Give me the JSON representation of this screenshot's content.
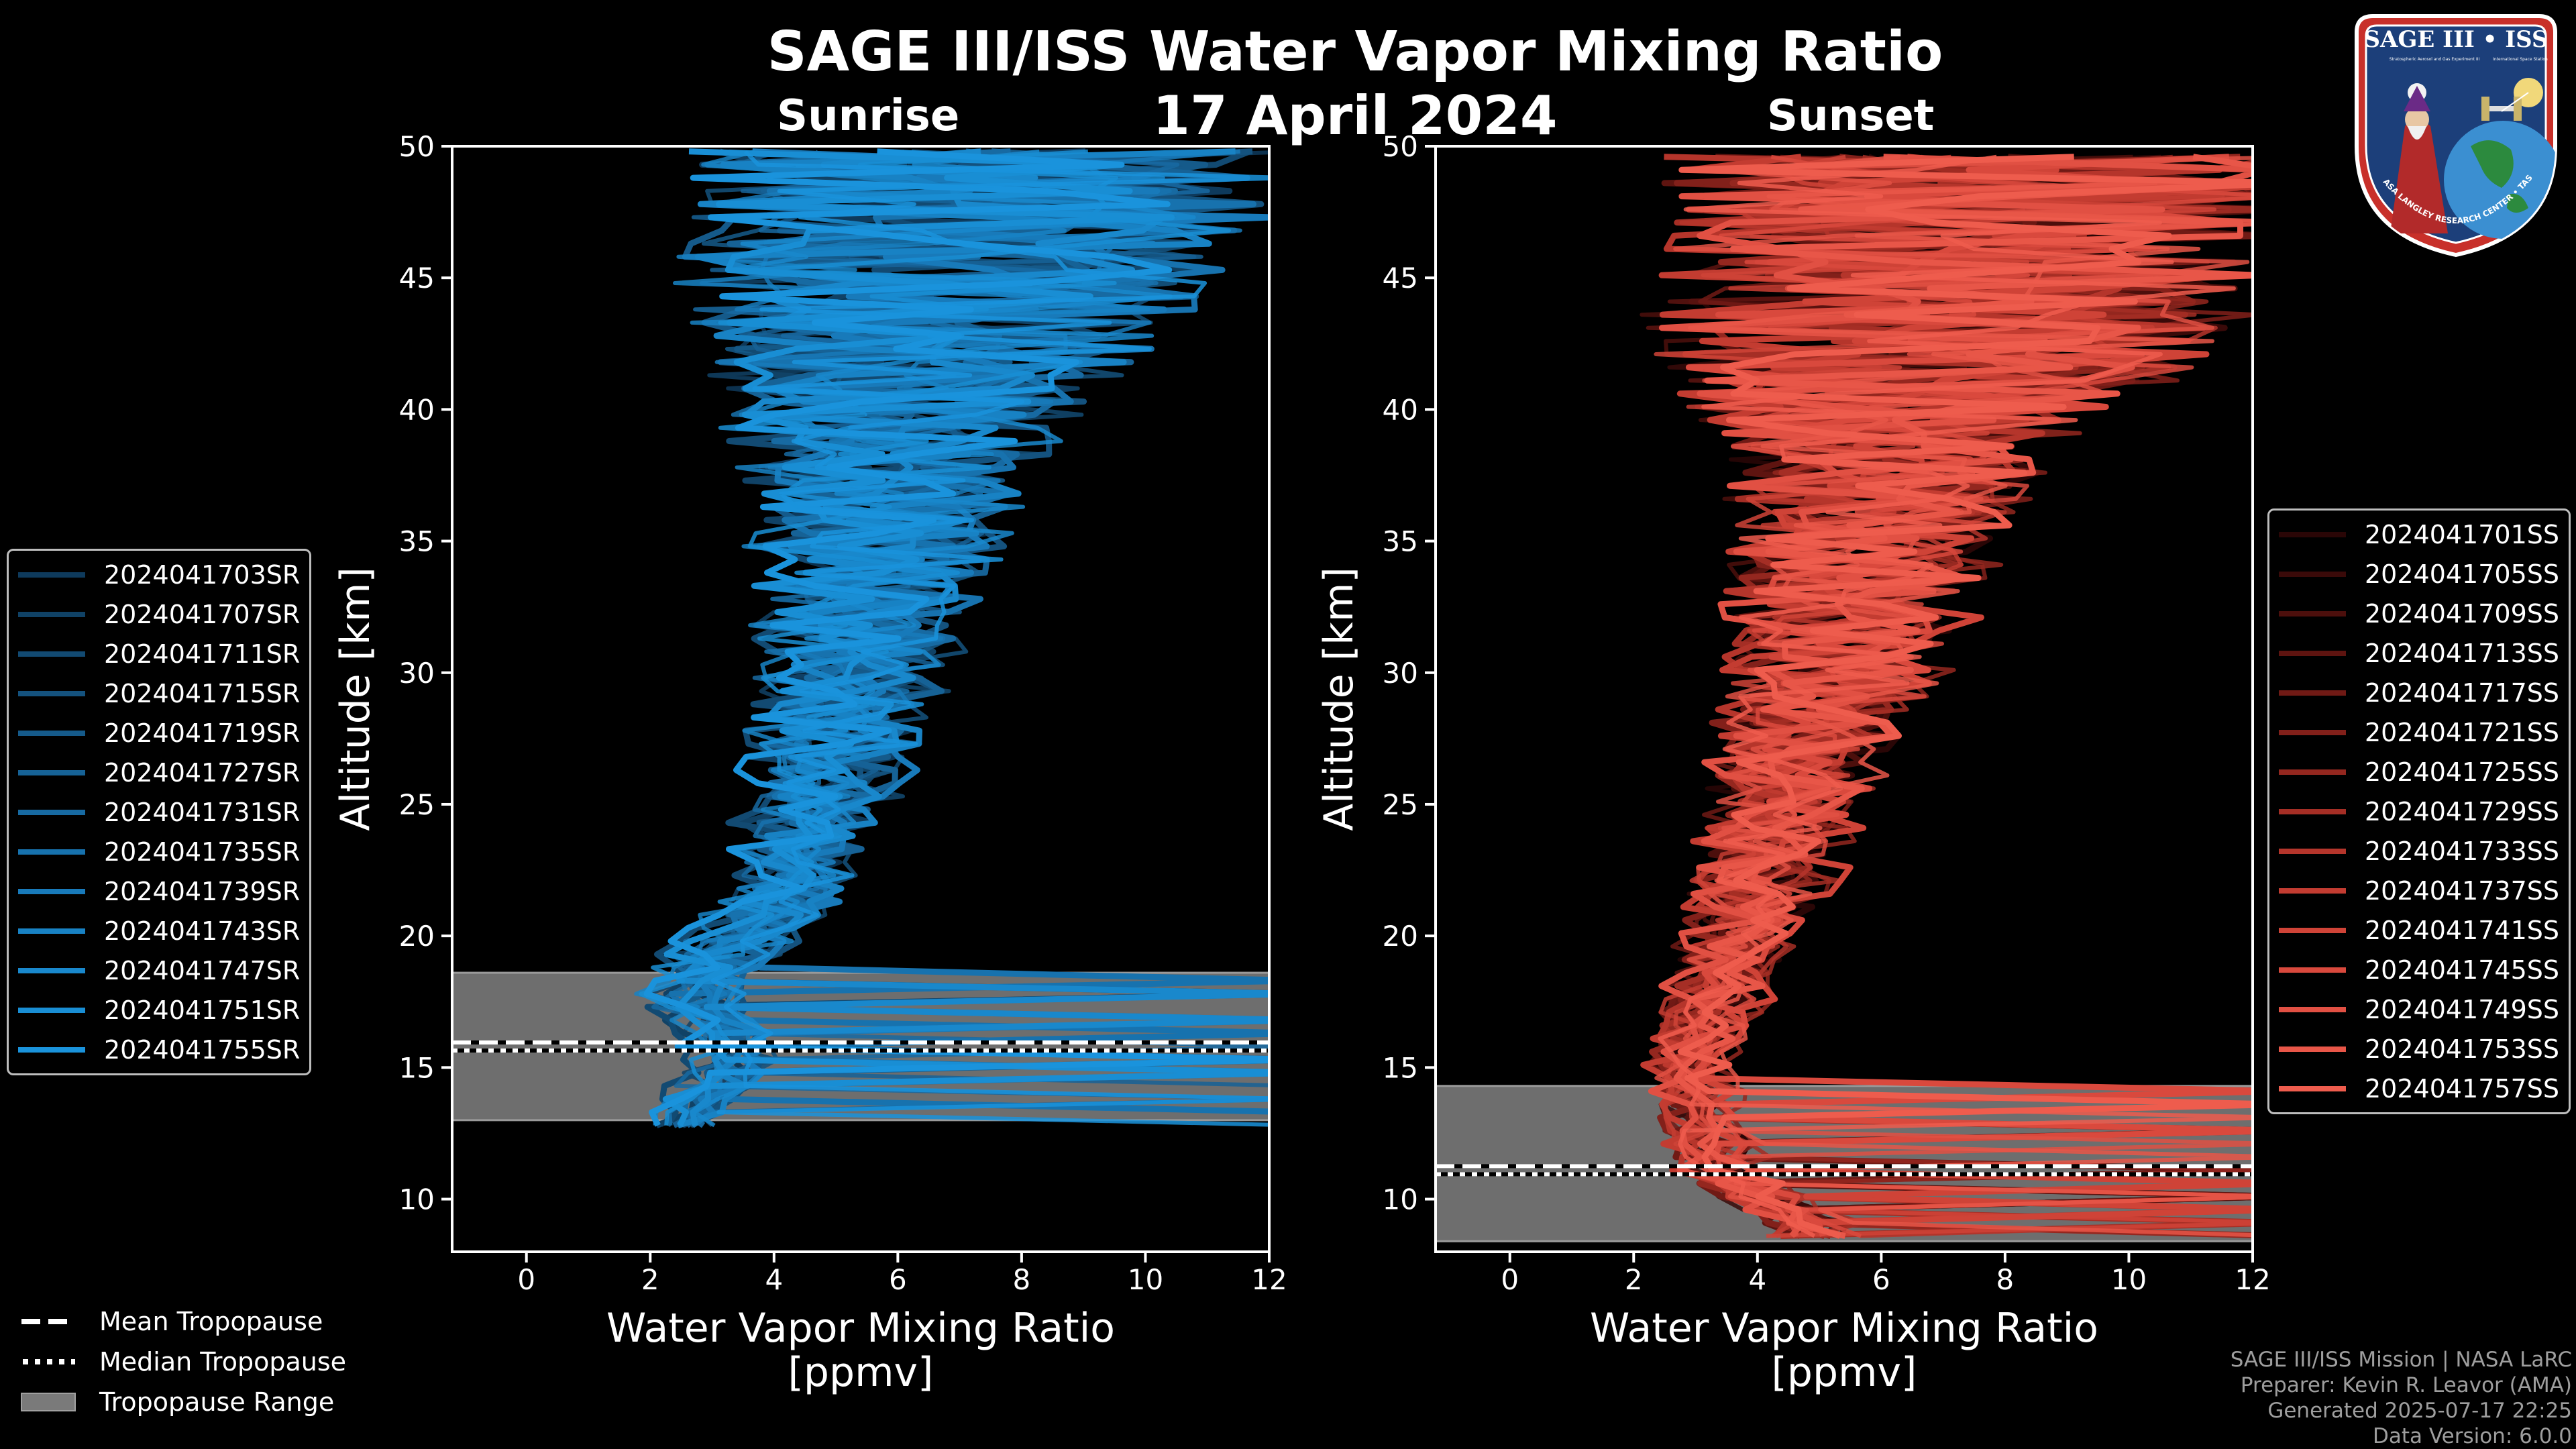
{
  "title": "SAGE III/ISS Water Vapor Mixing Ratio",
  "date": "17 April 2024",
  "colors": {
    "background": "#000000",
    "sunrise": "#1a8fd6",
    "sunset": "#e8584a",
    "tropopause_band": "#707070",
    "axis": "#ffffff"
  },
  "chart_data": [
    {
      "type": "line",
      "title": "Sunrise",
      "xlabel": "Water Vapor Mixing Ratio\n[ppmv]",
      "xlabel_lines": [
        "Water Vapor Mixing Ratio",
        "[ppmv]"
      ],
      "ylabel": "Altitude [km]",
      "xlim": [
        -1.2,
        12
      ],
      "ylim": [
        8,
        50
      ],
      "xticks": [
        0,
        2,
        4,
        6,
        8,
        10,
        12
      ],
      "yticks": [
        10,
        15,
        20,
        25,
        30,
        35,
        40,
        45,
        50
      ],
      "tropopause": {
        "mean_km": 15.8,
        "median_km": 15.8,
        "range_km": [
          13.0,
          18.6
        ]
      },
      "legend_placement": "left-outside",
      "series": [
        {
          "name": "2024041703SR",
          "color": "#0e3a5c"
        },
        {
          "name": "2024041707SR",
          "color": "#104266"
        },
        {
          "name": "2024041711SR",
          "color": "#124a72"
        },
        {
          "name": "2024041715SR",
          "color": "#14527e"
        },
        {
          "name": "2024041719SR",
          "color": "#155a8a"
        },
        {
          "name": "2024041727SR",
          "color": "#166296"
        },
        {
          "name": "2024041731SR",
          "color": "#176aa2"
        },
        {
          "name": "2024041735SR",
          "color": "#1772ae"
        },
        {
          "name": "2024041739SR",
          "color": "#187aba"
        },
        {
          "name": "2024041743SR",
          "color": "#1882c4"
        },
        {
          "name": "2024041747SR",
          "color": "#1988cc"
        },
        {
          "name": "2024041751SR",
          "color": "#198ed4"
        },
        {
          "name": "2024041755SR",
          "color": "#1a93dc"
        }
      ],
      "profile_shape": [
        [
          2.5,
          13
        ],
        [
          3.4,
          15.5
        ],
        [
          2.6,
          18
        ],
        [
          3.5,
          20
        ],
        [
          4.2,
          22
        ],
        [
          4.7,
          25
        ],
        [
          5.1,
          28
        ],
        [
          5.4,
          31
        ],
        [
          5.6,
          34
        ],
        [
          5.8,
          37
        ],
        [
          6.0,
          40
        ],
        [
          6.5,
          43
        ],
        [
          7.0,
          46
        ],
        [
          7.5,
          49.5
        ]
      ],
      "noise_profile": [
        [
          13,
          0.3
        ],
        [
          18,
          0.6
        ],
        [
          24,
          0.9
        ],
        [
          30,
          1.4
        ],
        [
          35,
          1.8
        ],
        [
          39,
          2.4
        ],
        [
          42,
          3.5
        ],
        [
          46,
          4.5
        ],
        [
          50,
          5.0
        ]
      ]
    },
    {
      "type": "line",
      "title": "Sunset",
      "xlabel": "Water Vapor Mixing Ratio\n[ppmv]",
      "xlabel_lines": [
        "Water Vapor Mixing Ratio",
        "[ppmv]"
      ],
      "ylabel": "Altitude [km]",
      "xlim": [
        -1.2,
        12
      ],
      "ylim": [
        8,
        50
      ],
      "xticks": [
        0,
        2,
        4,
        6,
        8,
        10,
        12
      ],
      "yticks": [
        10,
        15,
        20,
        25,
        30,
        35,
        40,
        45,
        50
      ],
      "tropopause": {
        "mean_km": 11.1,
        "median_km": 11.1,
        "range_km": [
          8.4,
          14.3
        ]
      },
      "legend_placement": "right-outside",
      "series": [
        {
          "name": "2024041701SS",
          "color": "#2a0606"
        },
        {
          "name": "2024041705SS",
          "color": "#3a0a09"
        },
        {
          "name": "2024041709SS",
          "color": "#4c0f0c"
        },
        {
          "name": "2024041713SS",
          "color": "#5e1410"
        },
        {
          "name": "2024041717SS",
          "color": "#701a15"
        },
        {
          "name": "2024041721SS",
          "color": "#82201a"
        },
        {
          "name": "2024041725SS",
          "color": "#94271f"
        },
        {
          "name": "2024041729SS",
          "color": "#a52e25"
        },
        {
          "name": "2024041733SS",
          "color": "#b5352b"
        },
        {
          "name": "2024041737SS",
          "color": "#c33c31"
        },
        {
          "name": "2024041741SS",
          "color": "#cf4337"
        },
        {
          "name": "2024041745SS",
          "color": "#d9493d"
        },
        {
          "name": "2024041749SS",
          "color": "#e15043"
        },
        {
          "name": "2024041753SS",
          "color": "#e85648"
        },
        {
          "name": "2024041757SS",
          "color": "#ee5c4d"
        }
      ],
      "profile_shape": [
        [
          5.0,
          9
        ],
        [
          3.5,
          11
        ],
        [
          3.2,
          13
        ],
        [
          3.0,
          15
        ],
        [
          3.2,
          17
        ],
        [
          3.6,
          19
        ],
        [
          4.0,
          21
        ],
        [
          4.4,
          24
        ],
        [
          4.8,
          27
        ],
        [
          5.3,
          30
        ],
        [
          5.6,
          33
        ],
        [
          6.0,
          36
        ],
        [
          6.3,
          39
        ],
        [
          6.8,
          42
        ],
        [
          7.5,
          45
        ],
        [
          8.0,
          49.5
        ]
      ],
      "noise_profile": [
        [
          9,
          0.6
        ],
        [
          13,
          0.4
        ],
        [
          18,
          0.6
        ],
        [
          24,
          1.0
        ],
        [
          30,
          1.5
        ],
        [
          35,
          2.0
        ],
        [
          39,
          2.6
        ],
        [
          42,
          4.5
        ],
        [
          46,
          5.0
        ],
        [
          50,
          5.5
        ]
      ]
    }
  ],
  "tropopause_legend": {
    "mean": "Mean Tropopause",
    "median": "Median Tropopause",
    "range": "Tropopause Range"
  },
  "footer": {
    "line1": "SAGE III/ISS Mission | NASA LaRC",
    "line2": "Preparer: Kevin R. Leavor (AMA)",
    "line3": "Generated 2025-07-17 22:25",
    "line4": "Data Version: 6.0.0"
  },
  "logo": {
    "top_text": "SAGE III • ISS",
    "sub_text": "Stratospheric Aerosol and Gas Experiment III",
    "side_text": "International Space Station",
    "bottom_text": "BALL • NASA LANGLEY RESEARCH CENTER • TAS-I • ESA"
  }
}
